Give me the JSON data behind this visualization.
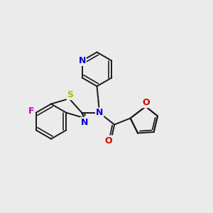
{
  "bg_color": "#ebebeb",
  "bond_color": "#1a1a1a",
  "bond_width": 1.4,
  "atom_colors": {
    "N": "#0000cc",
    "S": "#b8b800",
    "O": "#cc0000",
    "F": "#cc00cc",
    "C": "#1a1a1a"
  },
  "font_size": 8.5,
  "fig_size": [
    3.0,
    3.0
  ],
  "dpi": 100,
  "xlim": [
    0,
    10
  ],
  "ylim": [
    2,
    10
  ]
}
